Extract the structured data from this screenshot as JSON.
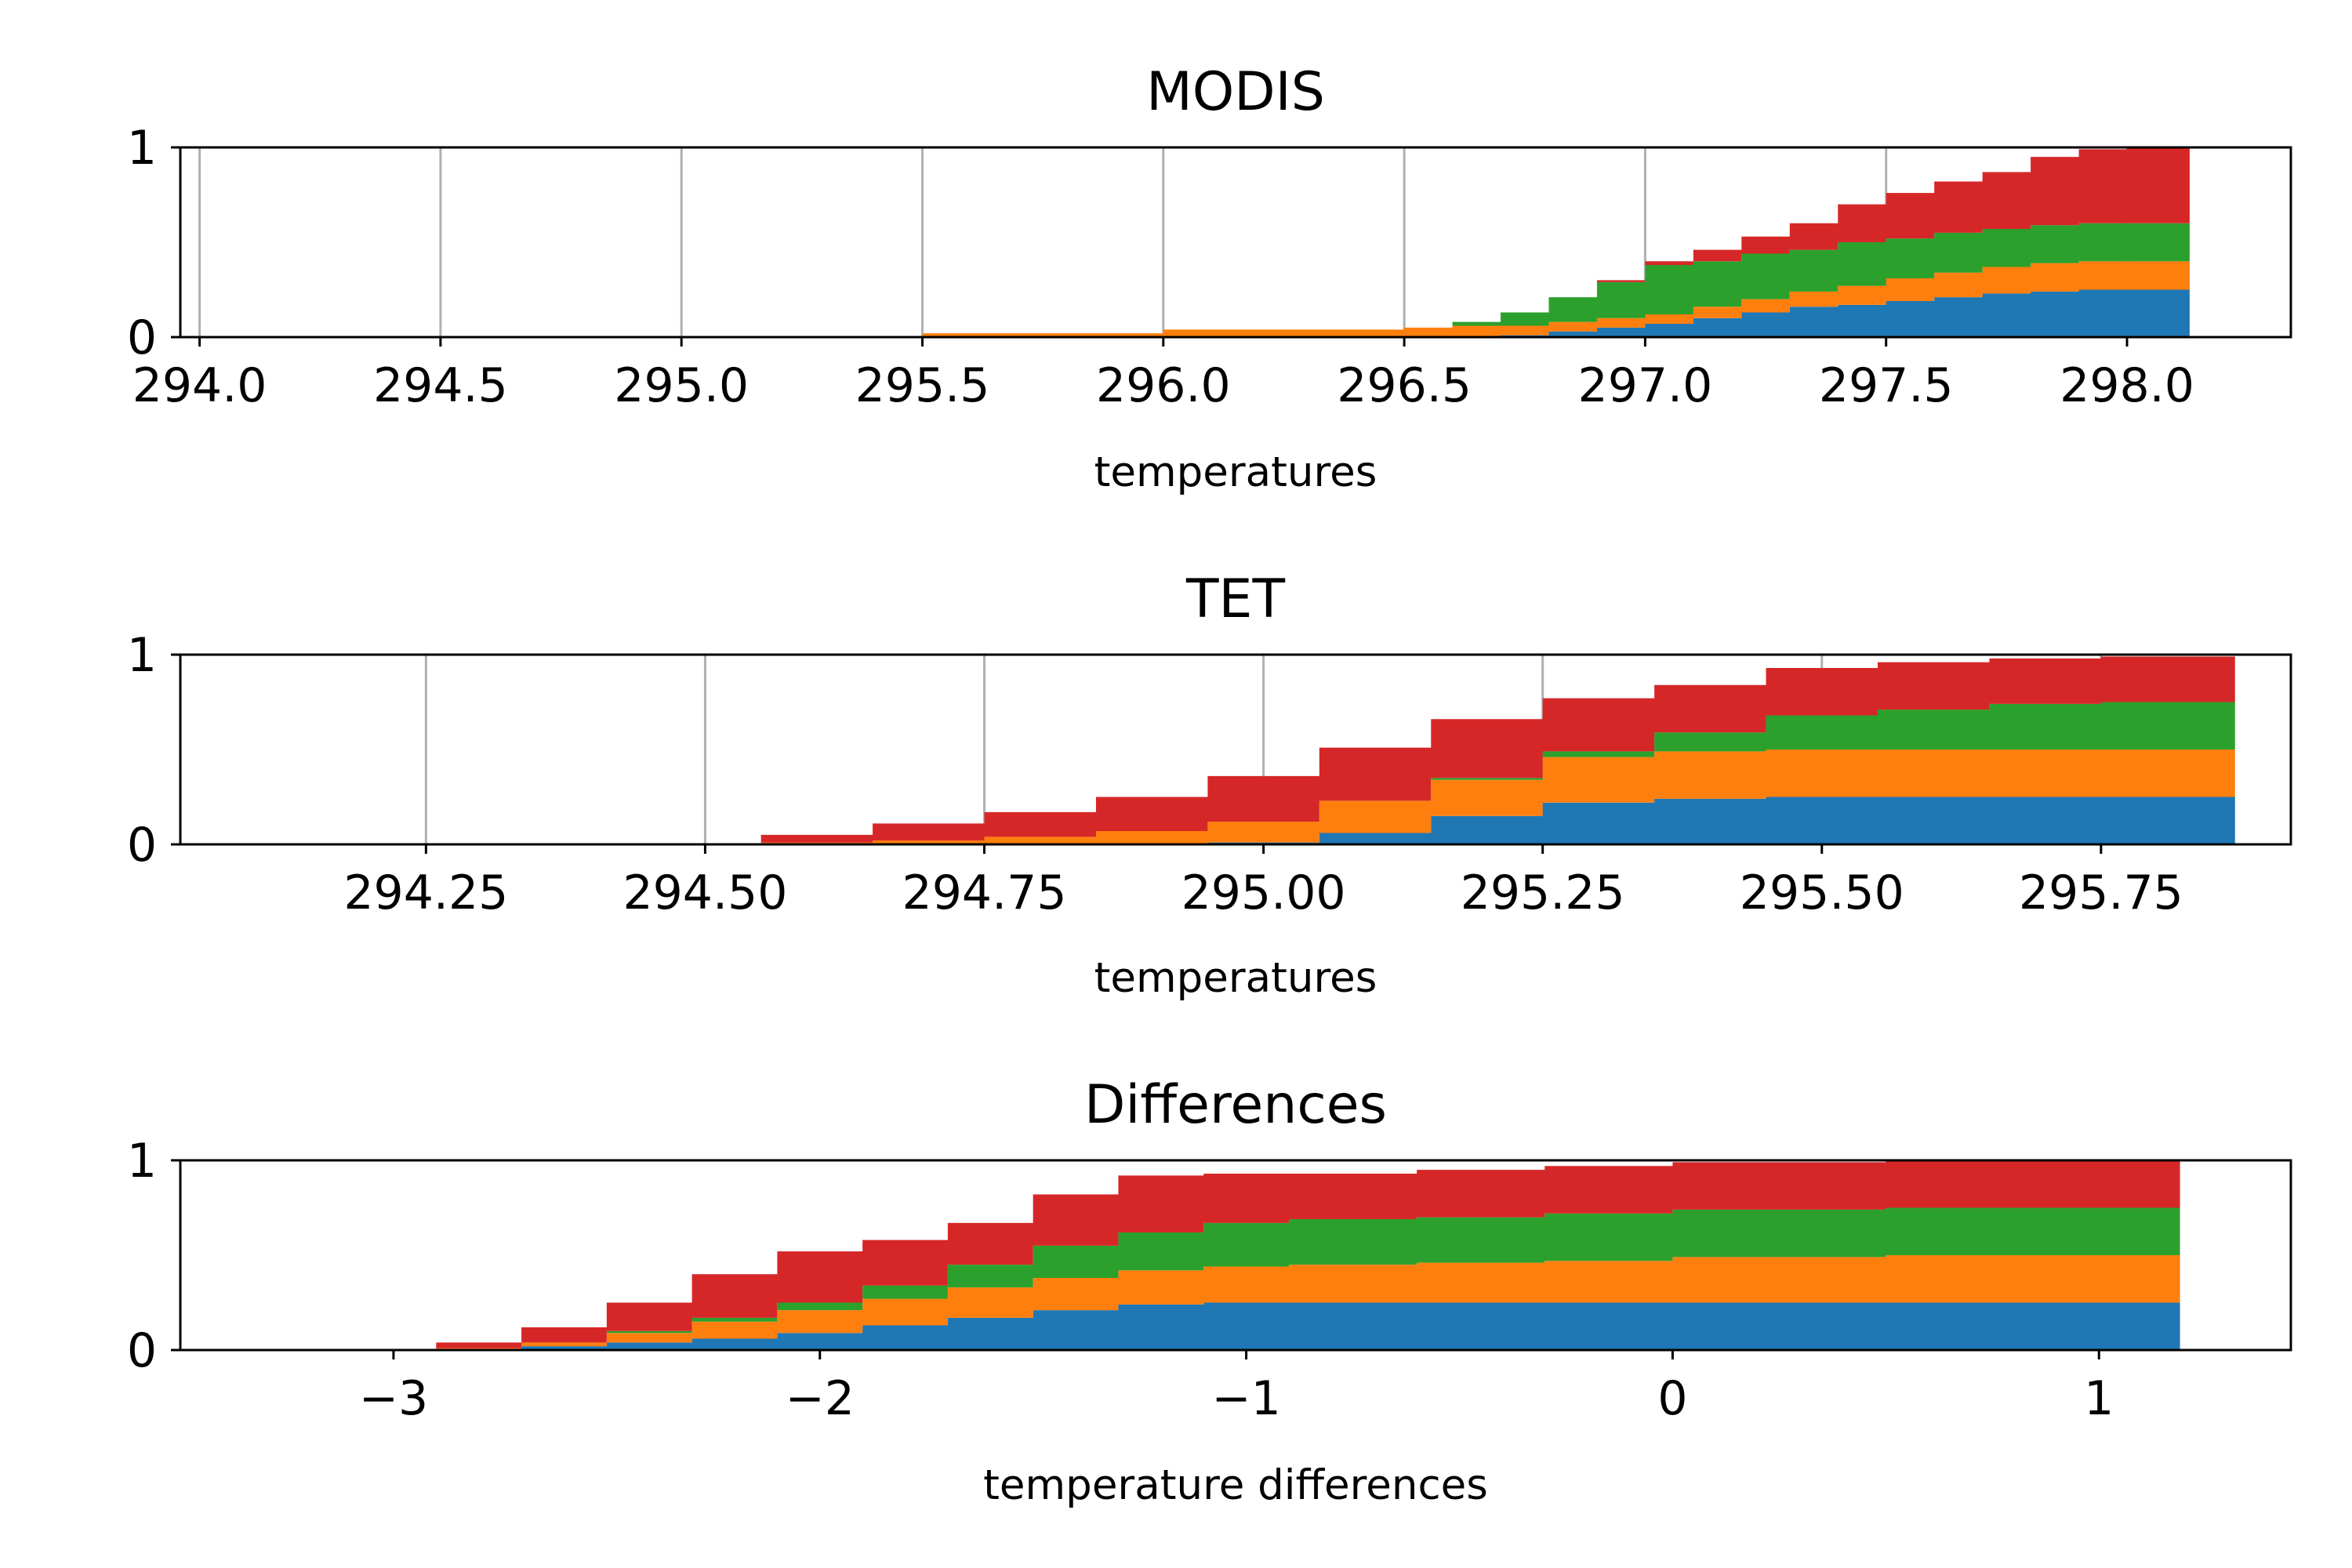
{
  "chart_data": [
    {
      "type": "area",
      "title": "MODIS",
      "xlabel": "temperatures",
      "ylabel": "",
      "xlim": [
        293.96,
        298.34
      ],
      "ylim": [
        0,
        1.0
      ],
      "x_ticks": [
        294.0,
        294.5,
        295.0,
        295.5,
        296.0,
        296.5,
        297.0,
        297.5,
        298.0
      ],
      "x_tick_labels": [
        "294.0",
        "294.5",
        "295.0",
        "295.5",
        "296.0",
        "296.5",
        "297.0",
        "297.5",
        "298.0"
      ],
      "y_ticks": [
        0,
        1
      ],
      "y_tick_labels": [
        "0",
        "1"
      ],
      "grid": true,
      "stacked": true,
      "x": [
        295.0,
        295.5,
        296.0,
        296.5,
        296.6,
        296.7,
        296.8,
        296.9,
        297.0,
        297.1,
        297.2,
        297.3,
        297.4,
        297.5,
        297.6,
        297.7,
        297.8,
        297.9,
        298.0,
        298.13
      ],
      "series": [
        {
          "color": "#1f77b4",
          "values": [
            0.0,
            0.0,
            0.0,
            0.0,
            0.0,
            0.01,
            0.03,
            0.05,
            0.07,
            0.1,
            0.13,
            0.16,
            0.17,
            0.19,
            0.21,
            0.23,
            0.24,
            0.25,
            0.25,
            0.25
          ]
        },
        {
          "color": "#ff7f0e",
          "values": [
            0.0,
            0.02,
            0.04,
            0.05,
            0.06,
            0.05,
            0.05,
            0.05,
            0.05,
            0.06,
            0.07,
            0.08,
            0.1,
            0.12,
            0.13,
            0.14,
            0.15,
            0.15,
            0.15,
            0.15
          ]
        },
        {
          "color": "#2ca02c",
          "values": [
            0.0,
            0.0,
            0.0,
            0.0,
            0.02,
            0.07,
            0.13,
            0.19,
            0.26,
            0.24,
            0.24,
            0.22,
            0.23,
            0.21,
            0.21,
            0.2,
            0.2,
            0.2,
            0.2,
            0.2
          ]
        },
        {
          "color": "#d62728",
          "values": [
            0.0,
            0.0,
            0.0,
            0.0,
            0.0,
            0.0,
            0.0,
            0.01,
            0.02,
            0.06,
            0.09,
            0.14,
            0.2,
            0.24,
            0.27,
            0.3,
            0.36,
            0.39,
            0.4,
            0.4
          ]
        }
      ]
    },
    {
      "type": "area",
      "title": "TET",
      "xlabel": "temperatures",
      "ylabel": "",
      "xlim": [
        294.03,
        295.92
      ],
      "ylim": [
        0,
        1.0
      ],
      "x_ticks": [
        294.25,
        294.5,
        294.75,
        295.0,
        295.25,
        295.5,
        295.75
      ],
      "x_tick_labels": [
        "294.25",
        "294.50",
        "294.75",
        "295.00",
        "295.25",
        "295.50",
        "295.75"
      ],
      "y_ticks": [
        0,
        1
      ],
      "y_tick_labels": [
        "0",
        "1"
      ],
      "grid": true,
      "stacked": true,
      "x": [
        294.48,
        294.55,
        294.65,
        294.75,
        294.85,
        294.95,
        295.05,
        295.15,
        295.25,
        295.35,
        295.45,
        295.55,
        295.65,
        295.75,
        295.87
      ],
      "series": [
        {
          "color": "#1f77b4",
          "values": [
            0.0,
            0.0,
            0.0,
            0.0,
            0.0,
            0.01,
            0.06,
            0.15,
            0.22,
            0.24,
            0.25,
            0.25,
            0.25,
            0.25,
            0.25
          ]
        },
        {
          "color": "#ff7f0e",
          "values": [
            0.0,
            0.01,
            0.02,
            0.04,
            0.07,
            0.11,
            0.17,
            0.19,
            0.24,
            0.25,
            0.25,
            0.25,
            0.25,
            0.25,
            0.25
          ]
        },
        {
          "color": "#2ca02c",
          "values": [
            0.0,
            0.0,
            0.0,
            0.0,
            0.0,
            0.0,
            0.0,
            0.01,
            0.03,
            0.1,
            0.18,
            0.21,
            0.24,
            0.25,
            0.25
          ]
        },
        {
          "color": "#d62728",
          "values": [
            0.0,
            0.04,
            0.09,
            0.13,
            0.18,
            0.24,
            0.28,
            0.31,
            0.28,
            0.25,
            0.25,
            0.25,
            0.24,
            0.24,
            0.24
          ]
        }
      ]
    },
    {
      "type": "area",
      "title": "Differences",
      "xlabel": "temperature differences",
      "ylabel": "",
      "xlim": [
        -3.5,
        1.45
      ],
      "ylim": [
        0,
        1.0
      ],
      "x_ticks": [
        -3,
        -2,
        -1,
        0,
        1
      ],
      "x_tick_labels": [
        "−3",
        "−2",
        "−1",
        "0",
        "1"
      ],
      "y_ticks": [
        0,
        1
      ],
      "y_tick_labels": [
        "0",
        "1"
      ],
      "grid": false,
      "stacked": true,
      "x": [
        -3.05,
        -2.9,
        -2.7,
        -2.5,
        -2.3,
        -2.1,
        -1.9,
        -1.7,
        -1.5,
        -1.3,
        -1.1,
        -0.9,
        -0.6,
        -0.3,
        0.0,
        0.5,
        1.19
      ],
      "series": [
        {
          "color": "#1f77b4",
          "values": [
            0.0,
            0.0,
            0.02,
            0.04,
            0.06,
            0.09,
            0.13,
            0.17,
            0.21,
            0.24,
            0.25,
            0.25,
            0.25,
            0.25,
            0.25,
            0.25,
            0.25
          ]
        },
        {
          "color": "#ff7f0e",
          "values": [
            0.0,
            0.01,
            0.02,
            0.05,
            0.09,
            0.12,
            0.14,
            0.16,
            0.17,
            0.18,
            0.19,
            0.2,
            0.21,
            0.22,
            0.24,
            0.25,
            0.25
          ]
        },
        {
          "color": "#2ca02c",
          "values": [
            0.0,
            0.0,
            0.0,
            0.01,
            0.02,
            0.04,
            0.07,
            0.12,
            0.17,
            0.2,
            0.23,
            0.24,
            0.24,
            0.25,
            0.25,
            0.25,
            0.25
          ]
        },
        {
          "color": "#d62728",
          "values": [
            0.0,
            0.03,
            0.08,
            0.15,
            0.23,
            0.27,
            0.24,
            0.22,
            0.27,
            0.3,
            0.26,
            0.24,
            0.25,
            0.25,
            0.25,
            0.25,
            0.25
          ]
        }
      ]
    }
  ]
}
